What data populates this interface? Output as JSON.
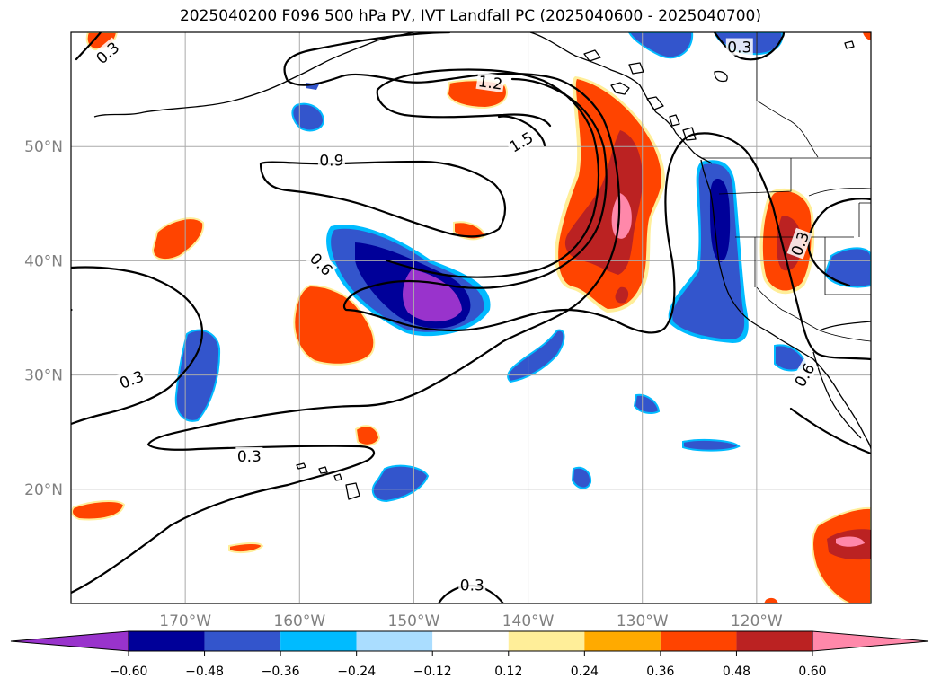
{
  "title": "2025040200 F096 500 hPa PV, IVT Landfall PC (2025040600 - 2025040700)",
  "lon_ticks": [
    {
      "value": -170,
      "label": "170°W"
    },
    {
      "value": -160,
      "label": "160°W"
    },
    {
      "value": -150,
      "label": "150°W"
    },
    {
      "value": -140,
      "label": "140°W"
    },
    {
      "value": -130,
      "label": "130°W"
    },
    {
      "value": -120,
      "label": "120°W"
    }
  ],
  "lat_ticks": [
    {
      "value": 20,
      "label": "20°N"
    },
    {
      "value": 30,
      "label": "30°N"
    },
    {
      "value": 40,
      "label": "40°N"
    },
    {
      "value": 50,
      "label": "50°N"
    }
  ],
  "extent": {
    "lon": [
      -180,
      -110
    ],
    "lat": [
      10,
      60
    ]
  },
  "contour_labels": [
    {
      "text": "0.3",
      "lon": -176.8,
      "lat": 58.2,
      "rot": -40
    },
    {
      "text": "0.3",
      "lon": -121.5,
      "lat": 58.7,
      "rot": 0
    },
    {
      "text": "1.2",
      "lon": -143.3,
      "lat": 55.6,
      "rot": 8
    },
    {
      "text": "1.5",
      "lon": -140.6,
      "lat": 50.4,
      "rot": -30
    },
    {
      "text": "0.9",
      "lon": -157.2,
      "lat": 48.8,
      "rot": 0
    },
    {
      "text": "0.6",
      "lon": -158.1,
      "lat": 39.7,
      "rot": 45
    },
    {
      "text": "0.3",
      "lon": -174.7,
      "lat": 29.6,
      "rot": -20
    },
    {
      "text": "0.3",
      "lon": -164.4,
      "lat": 22.9,
      "rot": 0
    },
    {
      "text": "0.3",
      "lon": -144.9,
      "lat": 11.6,
      "rot": 0
    },
    {
      "text": "0.3",
      "lon": -116.2,
      "lat": 41.5,
      "rot": -70
    },
    {
      "text": "0.6",
      "lon": -115.8,
      "lat": 30.0,
      "rot": -60
    }
  ],
  "colorbar": {
    "colors": [
      "#9933cc",
      "#000099",
      "#3355cc",
      "#00bbff",
      "#aaddff",
      "#ffffff",
      "#ffee99",
      "#ffaa00",
      "#ff4400",
      "#bb2222",
      "#ff88aa"
    ],
    "tick_labels": [
      "−0.60",
      "−0.48",
      "−0.36",
      "−0.24",
      "−0.12",
      "0.12",
      "0.24",
      "0.36",
      "0.48",
      "0.60"
    ]
  },
  "colors": {
    "pos_outer": "#ff4400",
    "pos_mid": "#bb2222",
    "pos_inner": "#ff88aa",
    "neg_outer": "#3355cc",
    "neg_mid": "#000099",
    "neg_inner": "#9933cc",
    "neg_rim": "#00bbff",
    "grid": "#aaaaaa",
    "tick_text": "#808080"
  }
}
